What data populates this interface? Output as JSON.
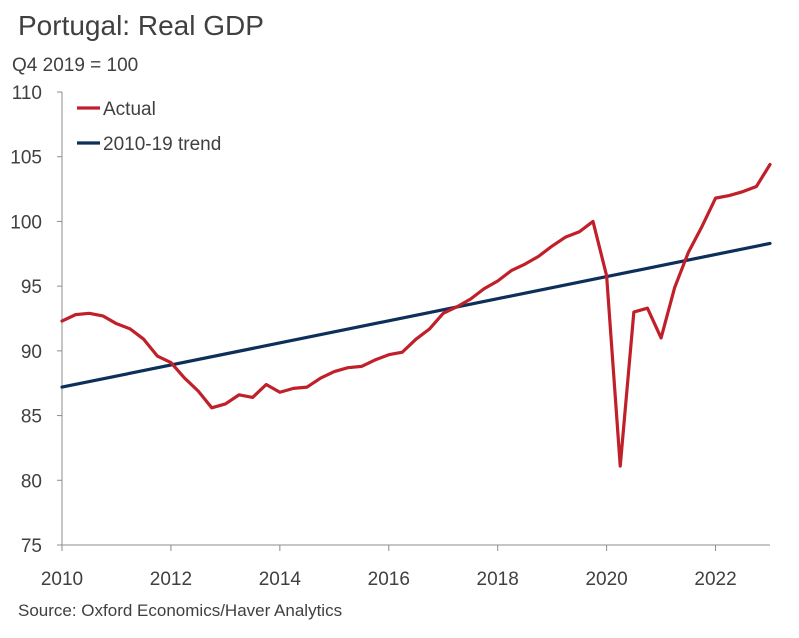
{
  "chart_data": {
    "type": "line",
    "title": "Portugal: Real GDP",
    "subtitle": "Q4 2019 = 100",
    "source": "Source: Oxford Economics/Haver Analytics",
    "xlabel": "",
    "ylabel": "",
    "xlim": [
      2010,
      2023
    ],
    "ylim": [
      75,
      110
    ],
    "yticks": [
      75,
      80,
      85,
      90,
      95,
      100,
      105,
      110
    ],
    "xticks": [
      2010,
      2012,
      2014,
      2016,
      2018,
      2020,
      2022
    ],
    "legend_position": "top-left",
    "grid": false,
    "series": [
      {
        "name": "Actual",
        "color": "#c0202a",
        "x": [
          2010.0,
          2010.25,
          2010.5,
          2010.75,
          2011.0,
          2011.25,
          2011.5,
          2011.75,
          2012.0,
          2012.25,
          2012.5,
          2012.75,
          2013.0,
          2013.25,
          2013.5,
          2013.75,
          2014.0,
          2014.25,
          2014.5,
          2014.75,
          2015.0,
          2015.25,
          2015.5,
          2015.75,
          2016.0,
          2016.25,
          2016.5,
          2016.75,
          2017.0,
          2017.25,
          2017.5,
          2017.75,
          2018.0,
          2018.25,
          2018.5,
          2018.75,
          2019.0,
          2019.25,
          2019.5,
          2019.75,
          2020.0,
          2020.25,
          2020.5,
          2020.75,
          2021.0,
          2021.25,
          2021.5,
          2021.75,
          2022.0,
          2022.25,
          2022.5,
          2022.75,
          2023.0
        ],
        "values": [
          92.3,
          92.8,
          92.9,
          92.7,
          92.1,
          91.7,
          90.9,
          89.6,
          89.1,
          87.9,
          86.9,
          85.6,
          85.9,
          86.6,
          86.4,
          87.4,
          86.8,
          87.1,
          87.2,
          87.9,
          88.4,
          88.7,
          88.8,
          89.3,
          89.7,
          89.9,
          90.9,
          91.7,
          92.9,
          93.4,
          94.0,
          94.8,
          95.4,
          96.2,
          96.7,
          97.3,
          98.1,
          98.8,
          99.2,
          100.0,
          95.8,
          81.1,
          93.0,
          93.3,
          91.0,
          94.9,
          97.6,
          99.6,
          101.8,
          102.0,
          102.3,
          102.7,
          104.4
        ]
      },
      {
        "name": "2010-19 trend",
        "color": "#0e2f5a",
        "x": [
          2010.0,
          2023.0
        ],
        "values": [
          87.2,
          98.3
        ]
      }
    ]
  }
}
